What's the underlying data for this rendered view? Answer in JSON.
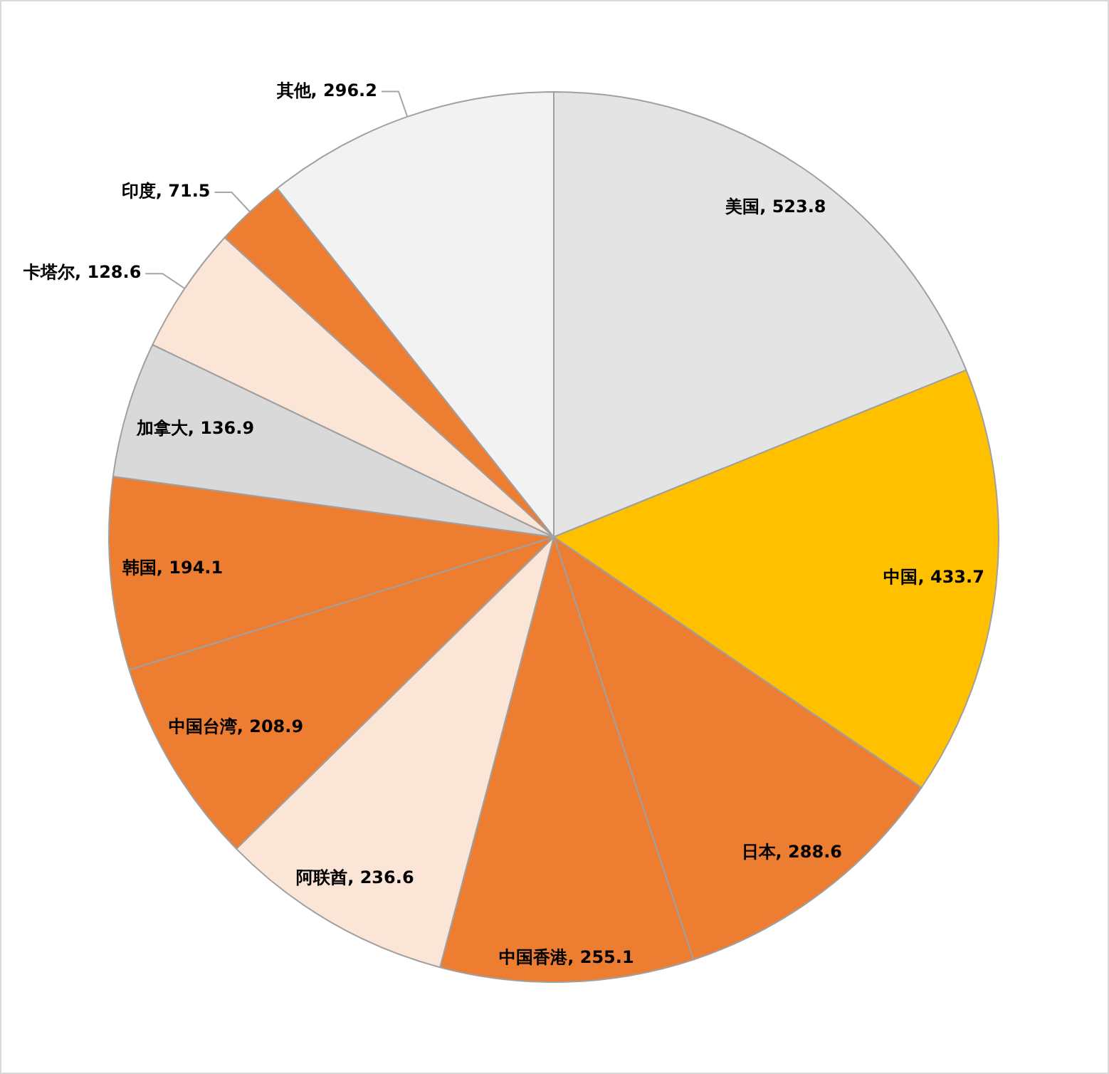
{
  "chart_data": {
    "type": "pie",
    "categories": [
      "美国",
      "中国",
      "日本",
      "中国香港",
      "阿联酋",
      "中国台湾",
      "韩国",
      "加拿大",
      "卡塔尔",
      "印度",
      "其他"
    ],
    "values": [
      523.8,
      433.7,
      288.6,
      255.1,
      236.6,
      208.9,
      194.1,
      136.9,
      128.6,
      71.5,
      296.2
    ],
    "value_labels": [
      ", 523.8",
      ", 433.7",
      ", 288.6",
      ", 255.1",
      ", 236.6",
      ", 208.9",
      ", 194.1",
      ", 136.9",
      ", 128.6",
      ", 71.5",
      ", 296.2"
    ],
    "colors": [
      "#e4e4e4",
      "#ffc000",
      "#ed7d31",
      "#ed7d31",
      "#fbe5d6",
      "#ed7d31",
      "#ed7d31",
      "#d9d9d9",
      "#fbe5d6",
      "#ed7d31",
      "#f2f2f2"
    ]
  }
}
